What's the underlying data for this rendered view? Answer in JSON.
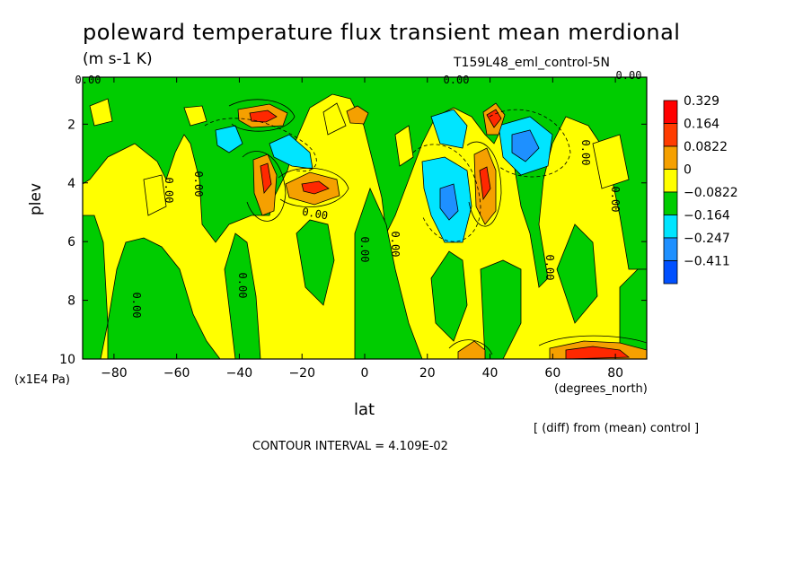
{
  "chart_data": {
    "type": "heatmap",
    "title": "poleward temperature flux transient mean merdional",
    "units": "(m s-1 K)",
    "run_label": "T159L48_eml_control-5N",
    "xlabel": "lat",
    "xunits": "(degrees_north)",
    "ylabel": "plev",
    "yunits": "(x1E4 Pa)",
    "xlim": [
      -90,
      90
    ],
    "ylim": [
      10,
      0.4
    ],
    "x_ticks": [
      -80,
      -60,
      -40,
      -20,
      0,
      20,
      40,
      60,
      80
    ],
    "y_ticks": [
      2,
      4,
      6,
      8,
      10
    ],
    "contour_interval_text": "CONTOUR INTERVAL = 4.109E-02",
    "diff_note": "[ (diff) from (mean) control ]",
    "contour_labels": [
      "0.00",
      "0.00",
      "0.00",
      "0.00",
      "0.00",
      "0.00",
      "0.00",
      "0.00",
      "0.00",
      "0.00",
      "0.00",
      "0.00",
      "0.00"
    ],
    "legend": {
      "labels": [
        "0.329",
        "0.164",
        "0.0822",
        "0",
        "-0.0822",
        "-0.164",
        "-0.247",
        "-0.411"
      ],
      "colors": [
        "#ff0000",
        "#ff3c00",
        "#f5a000",
        "#ffff00",
        "#00cc00",
        "#00e5ff",
        "#1e90ff",
        "#0050ff"
      ]
    },
    "features": [
      {
        "lat": -32,
        "plev": 1.3,
        "value": 0.33
      },
      {
        "lat": -30,
        "plev": 3.9,
        "value": 0.16
      },
      {
        "lat": -16,
        "plev": 4.0,
        "value": 0.33
      },
      {
        "lat": -40,
        "plev": 2.3,
        "value": -0.16
      },
      {
        "lat": -22,
        "plev": 2.6,
        "value": -0.16
      },
      {
        "lat": -3,
        "plev": 1.3,
        "value": 0.16
      },
      {
        "lat": 27,
        "plev": 4.2,
        "value": -0.16
      },
      {
        "lat": 30,
        "plev": 2.0,
        "value": -0.16
      },
      {
        "lat": 38,
        "plev": 3.8,
        "value": 0.33
      },
      {
        "lat": 41,
        "plev": 1.5,
        "value": 0.33
      },
      {
        "lat": 48,
        "plev": 2.6,
        "value": -0.25
      },
      {
        "lat": 70,
        "plev": 9.8,
        "value": 0.33
      },
      {
        "lat": 34,
        "plev": 9.8,
        "value": 0.08
      }
    ]
  }
}
